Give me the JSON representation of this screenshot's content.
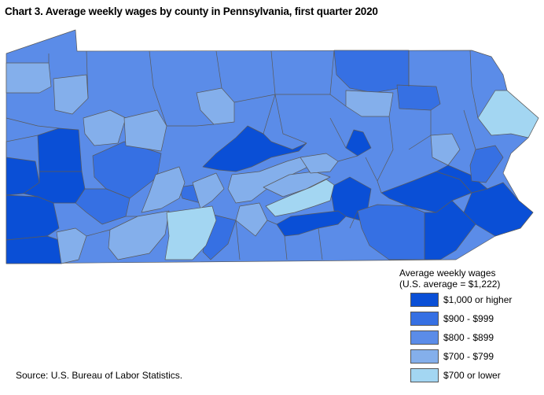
{
  "title": "Chart 3. Average weekly wages by county in Pennsylvania, first quarter 2020",
  "legend": {
    "heading_line1": "Average weekly wages",
    "heading_line2": "(U.S. average = $1,222)",
    "items": [
      {
        "label": "$1,000 or higher",
        "color": "#0a4fd6"
      },
      {
        "label": "$900 - $999",
        "color": "#3670e3"
      },
      {
        "label": "$800 - $899",
        "color": "#5b8ce8"
      },
      {
        "label": "$700 - $799",
        "color": "#84afeb"
      },
      {
        "label": "$700 or lower",
        "color": "#a3d6f2"
      }
    ]
  },
  "source": "Source: U.S. Bureau of Labor Statistics.",
  "state_background": "#5b8ce8"
}
